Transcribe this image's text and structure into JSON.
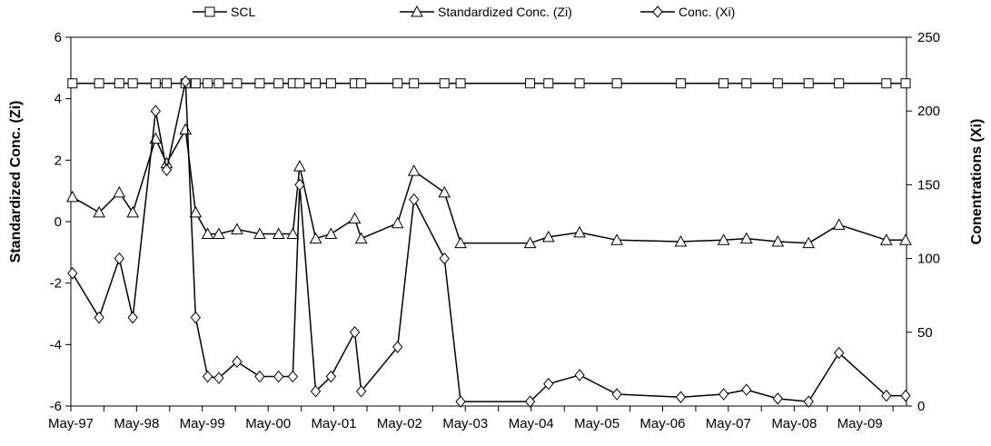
{
  "chart_data": {
    "type": "line",
    "title": "",
    "xlabel": "",
    "ylabel": "Standardized Conc. (Zi)",
    "y2label": "Conentrations (Xi)",
    "ylim": [
      -6,
      6
    ],
    "y2lim": [
      0,
      250
    ],
    "yticks": [
      -6,
      -4,
      -2,
      0,
      2,
      4,
      6
    ],
    "y2ticks": [
      0,
      50,
      100,
      150,
      200,
      250
    ],
    "xlim": [
      "1997-05-01",
      "2010-01-15"
    ],
    "xticks": [
      {
        "date": "1997-05-01",
        "label": "May-97"
      },
      {
        "date": "1998-05-01",
        "label": "May-98"
      },
      {
        "date": "1999-05-01",
        "label": "May-99"
      },
      {
        "date": "2000-05-01",
        "label": "May-00"
      },
      {
        "date": "2001-05-01",
        "label": "May-01"
      },
      {
        "date": "2002-05-01",
        "label": "May-02"
      },
      {
        "date": "2003-05-01",
        "label": "May-03"
      },
      {
        "date": "2004-05-01",
        "label": "May-04"
      },
      {
        "date": "2005-05-01",
        "label": "May-05"
      },
      {
        "date": "2006-05-01",
        "label": "May-06"
      },
      {
        "date": "2007-05-01",
        "label": "May-07"
      },
      {
        "date": "2008-05-01",
        "label": "May-08"
      },
      {
        "date": "2009-05-01",
        "label": "May-09"
      }
    ],
    "grid": false,
    "legend_position": "top",
    "x": [
      "1997-05-10",
      "1997-10-05",
      "1998-01-25",
      "1998-04-10",
      "1998-08-15",
      "1998-10-15",
      "1999-01-28",
      "1999-03-25",
      "1999-05-31",
      "1999-08-01",
      "1999-11-10",
      "2000-03-15",
      "2000-06-28",
      "2000-09-15",
      "2000-10-23",
      "2001-01-20",
      "2001-04-15",
      "2001-08-25",
      "2001-09-30",
      "2002-04-20",
      "2002-07-20",
      "2003-01-05",
      "2003-04-05",
      "2004-04-25",
      "2004-08-05",
      "2005-01-25",
      "2005-08-20",
      "2006-08-10",
      "2007-04-05",
      "2007-08-10",
      "2008-01-31",
      "2008-07-20",
      "2009-01-05",
      "2009-09-25",
      "2010-01-10"
    ],
    "series": [
      {
        "name": "SCL",
        "axis": "left",
        "marker": "square",
        "values": [
          4.5,
          4.5,
          4.5,
          4.5,
          4.5,
          4.5,
          4.5,
          4.5,
          4.5,
          4.5,
          4.5,
          4.5,
          4.5,
          4.5,
          4.5,
          4.5,
          4.5,
          4.5,
          4.5,
          4.5,
          4.5,
          4.5,
          4.5,
          4.5,
          4.5,
          4.5,
          4.5,
          4.5,
          4.5,
          4.5,
          4.5,
          4.5,
          4.5,
          4.5,
          4.5
        ]
      },
      {
        "name": "Standardized Conc. (Zi)",
        "axis": "left",
        "marker": "triangle",
        "values": [
          0.8,
          0.3,
          0.95,
          0.3,
          2.7,
          1.9,
          3.0,
          0.3,
          -0.4,
          -0.4,
          -0.25,
          -0.4,
          -0.4,
          -0.4,
          1.8,
          -0.55,
          -0.4,
          0.1,
          -0.55,
          -0.05,
          1.65,
          0.95,
          -0.7,
          -0.7,
          -0.5,
          -0.35,
          -0.6,
          -0.65,
          -0.6,
          -0.55,
          -0.65,
          -0.7,
          -0.1,
          -0.6,
          -0.6
        ]
      },
      {
        "name": "Conc. (Xi)",
        "axis": "right",
        "marker": "diamond",
        "values": [
          90,
          60,
          100,
          60,
          200,
          160,
          220,
          60,
          20,
          19,
          30,
          20,
          20,
          20,
          150,
          10,
          20,
          50,
          10,
          40,
          140,
          100,
          3,
          3,
          15,
          21,
          8,
          6,
          8,
          11,
          5,
          3,
          36,
          7,
          7
        ]
      }
    ]
  }
}
